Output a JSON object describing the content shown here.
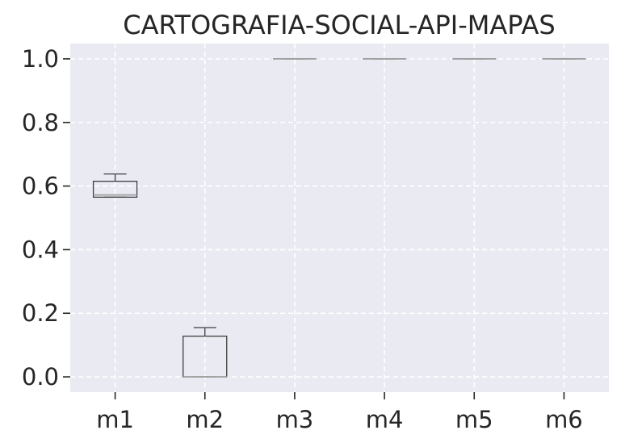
{
  "chart_data": {
    "type": "box",
    "title": "CARTOGRAFIA-SOCIAL-API-MAPAS",
    "xlabel": "",
    "ylabel": "",
    "categories": [
      "m1",
      "m2",
      "m3",
      "m4",
      "m5",
      "m6"
    ],
    "boxes": [
      {
        "name": "m1",
        "whislo": 0.565,
        "q1": 0.565,
        "med": 0.572,
        "q3": 0.615,
        "whishi": 0.638
      },
      {
        "name": "m2",
        "whislo": 0.0,
        "q1": 0.0,
        "med": 0.0,
        "q3": 0.128,
        "whishi": 0.155
      },
      {
        "name": "m3",
        "whislo": 1.0,
        "q1": 1.0,
        "med": 1.0,
        "q3": 1.0,
        "whishi": 1.0
      },
      {
        "name": "m4",
        "whislo": 1.0,
        "q1": 1.0,
        "med": 1.0,
        "q3": 1.0,
        "whishi": 1.0
      },
      {
        "name": "m5",
        "whislo": 1.0,
        "q1": 1.0,
        "med": 1.0,
        "q3": 1.0,
        "whishi": 1.0
      },
      {
        "name": "m6",
        "whislo": 1.0,
        "q1": 1.0,
        "med": 1.0,
        "q3": 1.0,
        "whishi": 1.0
      }
    ],
    "yticks": [
      0.0,
      0.2,
      0.4,
      0.6,
      0.8,
      1.0
    ],
    "ytick_labels": [
      "0.0",
      "0.2",
      "0.4",
      "0.6",
      "0.8",
      "1.0"
    ],
    "ylim": [
      -0.048,
      1.048
    ],
    "grid": true,
    "colors": {
      "background": "#EAEAF2",
      "grid": "#FFFFFF",
      "box_edge": "#3F3F3F",
      "median": "#A0A0A0",
      "text": "#262626"
    }
  }
}
